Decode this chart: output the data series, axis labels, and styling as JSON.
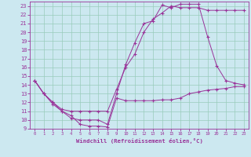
{
  "xlabel": "Windchill (Refroidissement éolien,°C)",
  "background_color": "#cce8f0",
  "grid_color": "#99ccbb",
  "line_color": "#993399",
  "xlim": [
    -0.5,
    23.5
  ],
  "ylim": [
    9,
    23.5
  ],
  "xticks": [
    0,
    1,
    2,
    3,
    4,
    5,
    6,
    7,
    8,
    9,
    10,
    11,
    12,
    13,
    14,
    15,
    16,
    17,
    18,
    19,
    20,
    21,
    22,
    23
  ],
  "yticks": [
    9,
    10,
    11,
    12,
    13,
    14,
    15,
    16,
    17,
    18,
    19,
    20,
    21,
    22,
    23
  ],
  "line1_x": [
    0,
    1,
    2,
    3,
    4,
    5,
    6,
    7,
    8,
    9,
    10,
    11,
    12,
    13,
    14,
    15,
    16,
    17,
    18,
    19,
    20,
    21,
    22,
    23
  ],
  "line1_y": [
    14.5,
    13.0,
    11.8,
    11.0,
    10.5,
    9.5,
    9.3,
    9.3,
    9.2,
    12.5,
    12.2,
    12.2,
    12.2,
    12.2,
    12.3,
    12.3,
    12.5,
    13.0,
    13.2,
    13.4,
    13.5,
    13.6,
    13.8,
    13.8
  ],
  "line2_x": [
    0,
    1,
    2,
    3,
    4,
    5,
    6,
    7,
    8,
    9,
    10,
    11,
    12,
    13,
    14,
    15,
    16,
    17,
    18,
    19,
    20,
    21,
    22,
    23
  ],
  "line2_y": [
    14.5,
    13.0,
    12.0,
    11.0,
    10.2,
    10.0,
    10.0,
    10.0,
    9.5,
    13.0,
    16.3,
    18.8,
    21.0,
    21.3,
    23.1,
    22.8,
    23.2,
    23.2,
    23.2,
    19.5,
    16.2,
    14.5,
    14.2,
    14.0
  ],
  "line3_x": [
    0,
    1,
    2,
    3,
    4,
    5,
    6,
    7,
    8,
    9,
    10,
    11,
    12,
    13,
    14,
    15,
    16,
    17,
    18,
    19,
    20,
    21,
    22,
    23
  ],
  "line3_y": [
    14.5,
    13.0,
    12.0,
    11.2,
    11.0,
    11.0,
    11.0,
    11.0,
    11.0,
    13.5,
    16.0,
    17.5,
    20.0,
    21.5,
    22.2,
    23.0,
    22.8,
    22.8,
    22.8,
    22.5,
    22.5,
    22.5,
    22.5,
    22.5
  ]
}
